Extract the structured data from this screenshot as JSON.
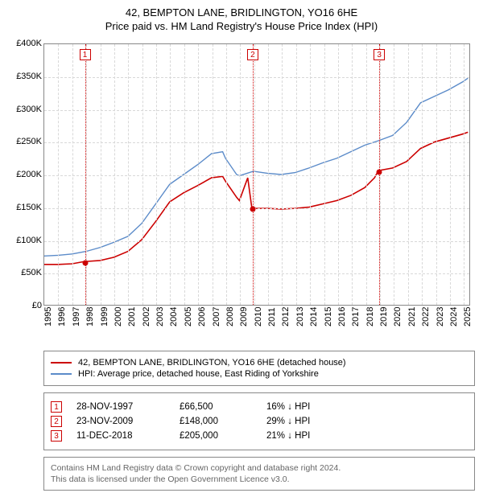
{
  "title": {
    "line1": "42, BEMPTON LANE, BRIDLINGTON, YO16 6HE",
    "line2": "Price paid vs. HM Land Registry's House Price Index (HPI)"
  },
  "chart": {
    "type": "line",
    "x_min": 1995,
    "x_max": 2025.5,
    "y_min": 0,
    "y_max": 400000,
    "y_ticks": [
      0,
      50000,
      100000,
      150000,
      200000,
      250000,
      300000,
      350000,
      400000
    ],
    "y_tick_labels": [
      "£0",
      "£50K",
      "£100K",
      "£150K",
      "£200K",
      "£250K",
      "£300K",
      "£350K",
      "£400K"
    ],
    "x_ticks": [
      1995,
      1996,
      1997,
      1998,
      1999,
      2000,
      2001,
      2002,
      2003,
      2004,
      2005,
      2006,
      2007,
      2008,
      2009,
      2010,
      2011,
      2012,
      2013,
      2014,
      2015,
      2016,
      2017,
      2018,
      2019,
      2020,
      2021,
      2022,
      2023,
      2024,
      2025
    ],
    "grid_color": "#d8d8d8",
    "border_color": "#888888",
    "background_color": "#ffffff",
    "series": {
      "red": {
        "color": "#cc0000",
        "width": 1.6,
        "points": [
          [
            1995,
            62000
          ],
          [
            1996,
            62000
          ],
          [
            1997,
            63000
          ],
          [
            1997.9,
            66500
          ],
          [
            1998,
            66500
          ],
          [
            1999,
            68000
          ],
          [
            2000,
            73000
          ],
          [
            2001,
            82000
          ],
          [
            2002,
            100000
          ],
          [
            2003,
            128000
          ],
          [
            2004,
            158000
          ],
          [
            2005,
            172000
          ],
          [
            2006,
            183000
          ],
          [
            2007,
            195000
          ],
          [
            2007.8,
            197000
          ],
          [
            2008,
            190000
          ],
          [
            2008.8,
            165000
          ],
          [
            2009,
            160000
          ],
          [
            2009.6,
            195000
          ],
          [
            2009.9,
            148000
          ],
          [
            2010,
            148000
          ],
          [
            2011,
            148000
          ],
          [
            2012,
            147000
          ],
          [
            2013,
            148000
          ],
          [
            2014,
            150000
          ],
          [
            2015,
            155000
          ],
          [
            2016,
            160000
          ],
          [
            2017,
            168000
          ],
          [
            2018,
            180000
          ],
          [
            2018.7,
            195000
          ],
          [
            2018.95,
            205000
          ],
          [
            2019,
            206000
          ],
          [
            2020,
            210000
          ],
          [
            2021,
            220000
          ],
          [
            2022,
            240000
          ],
          [
            2023,
            250000
          ],
          [
            2024,
            256000
          ],
          [
            2025,
            262000
          ],
          [
            2025.4,
            265000
          ]
        ]
      },
      "blue": {
        "color": "#5b8bc9",
        "width": 1.4,
        "points": [
          [
            1995,
            75000
          ],
          [
            1996,
            76000
          ],
          [
            1997,
            78000
          ],
          [
            1998,
            82000
          ],
          [
            1999,
            88000
          ],
          [
            2000,
            96000
          ],
          [
            2001,
            105000
          ],
          [
            2002,
            125000
          ],
          [
            2003,
            155000
          ],
          [
            2004,
            185000
          ],
          [
            2005,
            200000
          ],
          [
            2006,
            215000
          ],
          [
            2007,
            232000
          ],
          [
            2007.8,
            235000
          ],
          [
            2008,
            225000
          ],
          [
            2008.8,
            200000
          ],
          [
            2009,
            198000
          ],
          [
            2010,
            205000
          ],
          [
            2011,
            202000
          ],
          [
            2012,
            200000
          ],
          [
            2013,
            203000
          ],
          [
            2014,
            210000
          ],
          [
            2015,
            218000
          ],
          [
            2016,
            225000
          ],
          [
            2017,
            235000
          ],
          [
            2018,
            245000
          ],
          [
            2019,
            252000
          ],
          [
            2020,
            260000
          ],
          [
            2021,
            280000
          ],
          [
            2022,
            310000
          ],
          [
            2023,
            320000
          ],
          [
            2024,
            330000
          ],
          [
            2025,
            342000
          ],
          [
            2025.4,
            348000
          ]
        ]
      }
    },
    "event_lines": [
      {
        "label": "1",
        "x": 1997.91
      },
      {
        "label": "2",
        "x": 2009.9
      },
      {
        "label": "3",
        "x": 2018.95
      }
    ],
    "sale_points": [
      {
        "x": 1997.91,
        "y": 66500
      },
      {
        "x": 2009.9,
        "y": 148000
      },
      {
        "x": 2018.95,
        "y": 205000
      }
    ]
  },
  "legend": {
    "items": [
      {
        "color": "#cc0000",
        "label": "42, BEMPTON LANE, BRIDLINGTON, YO16 6HE (detached house)"
      },
      {
        "color": "#5b8bc9",
        "label": "HPI: Average price, detached house, East Riding of Yorkshire"
      }
    ]
  },
  "sales": [
    {
      "marker": "1",
      "date": "28-NOV-1997",
      "price": "£66,500",
      "diff": "16% ↓ HPI"
    },
    {
      "marker": "2",
      "date": "23-NOV-2009",
      "price": "£148,000",
      "diff": "29% ↓ HPI"
    },
    {
      "marker": "3",
      "date": "11-DEC-2018",
      "price": "£205,000",
      "diff": "21% ↓ HPI"
    }
  ],
  "footer": {
    "line1": "Contains HM Land Registry data © Crown copyright and database right 2024.",
    "line2": "This data is licensed under the Open Government Licence v3.0."
  }
}
